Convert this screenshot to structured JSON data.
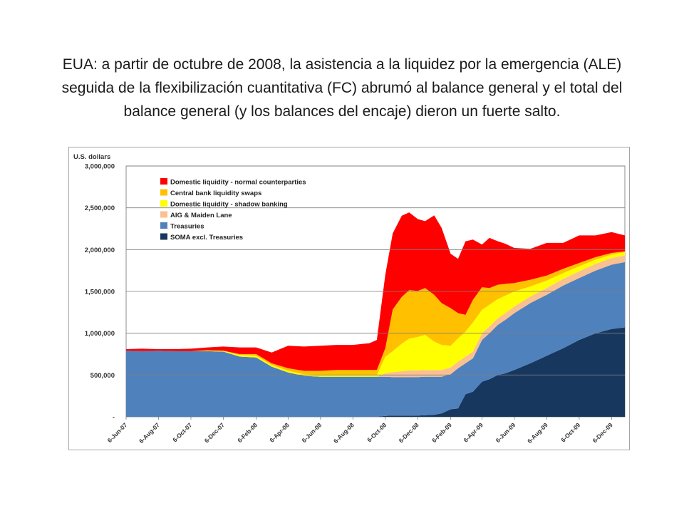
{
  "slide": {
    "title": "EUA: a partir de octubre de 2008, la asistencia a la liquidez por la emergencia (ALE) seguida de la flexibilización cuantitativa (FC) abrumó al balance general y el total del balance general (y los balances del encaje) dieron un fuerte salto."
  },
  "chart_data": {
    "type": "area",
    "stacked": true,
    "ylabel": "U.S. dollars",
    "ylim": [
      0,
      3000000
    ],
    "yticks": [
      0,
      500000,
      1000000,
      1500000,
      2000000,
      2500000,
      3000000
    ],
    "ytick_labels": [
      "-",
      "500,000",
      "1,000,000",
      "1,500,000",
      "2,000,000",
      "2,500,000",
      "3,000,000"
    ],
    "x": [
      "2007-06-06",
      "2007-07-06",
      "2007-08-06",
      "2007-09-06",
      "2007-10-06",
      "2007-11-06",
      "2007-12-06",
      "2008-01-06",
      "2008-02-06",
      "2008-03-06",
      "2008-04-06",
      "2008-05-06",
      "2008-06-06",
      "2008-07-06",
      "2008-08-06",
      "2008-09-06",
      "2008-09-20",
      "2008-10-06",
      "2008-10-20",
      "2008-11-06",
      "2008-11-20",
      "2008-12-06",
      "2008-12-20",
      "2009-01-06",
      "2009-01-20",
      "2009-02-06",
      "2009-02-20",
      "2009-03-06",
      "2009-03-20",
      "2009-04-06",
      "2009-04-20",
      "2009-05-06",
      "2009-05-20",
      "2009-06-06",
      "2009-07-06",
      "2009-08-06",
      "2009-09-06",
      "2009-10-06",
      "2009-11-06",
      "2009-12-06",
      "2009-12-31"
    ],
    "xtick_labels": [
      "6-Jun-07",
      "6-Aug-07",
      "6-Oct-07",
      "6-Dec-07",
      "6-Feb-08",
      "6-Apr-08",
      "6-Jun-08",
      "6-Aug-08",
      "6-Oct-08",
      "6-Dec-08",
      "6-Feb-09",
      "6-Apr-09",
      "6-Jun-09",
      "6-Aug-09",
      "6-Oct-09",
      "6-Dec-09"
    ],
    "xtick_dates": [
      "2007-06-06",
      "2007-08-06",
      "2007-10-06",
      "2007-12-06",
      "2008-02-06",
      "2008-04-06",
      "2008-06-06",
      "2008-08-06",
      "2008-10-06",
      "2008-12-06",
      "2009-02-06",
      "2009-04-06",
      "2009-06-06",
      "2009-08-06",
      "2009-10-06",
      "2009-12-06"
    ],
    "legend_position": "top-left",
    "series": [
      {
        "name": "SOMA excl. Treasuries",
        "color": "#17375e",
        "values": [
          0,
          0,
          0,
          0,
          0,
          0,
          0,
          0,
          0,
          0,
          0,
          0,
          0,
          0,
          0,
          0,
          0,
          10000,
          15000,
          15000,
          15000,
          15000,
          20000,
          25000,
          40000,
          90000,
          100000,
          270000,
          300000,
          420000,
          450000,
          500000,
          520000,
          560000,
          640000,
          730000,
          820000,
          920000,
          1000000,
          1050000,
          1070000
        ]
      },
      {
        "name": "Treasuries",
        "color": "#4f81bd",
        "values": [
          790000,
          785000,
          790000,
          785000,
          785000,
          785000,
          780000,
          720000,
          710000,
          600000,
          530000,
          490000,
          480000,
          480000,
          480000,
          480000,
          480000,
          470000,
          460000,
          460000,
          460000,
          460000,
          460000,
          455000,
          440000,
          420000,
          480000,
          370000,
          400000,
          500000,
          550000,
          600000,
          640000,
          680000,
          720000,
          730000,
          750000,
          740000,
          750000,
          770000,
          780000
        ]
      },
      {
        "name": "AIG & Maiden Lane",
        "color": "#fac090",
        "values": [
          0,
          0,
          0,
          0,
          0,
          0,
          0,
          0,
          0,
          0,
          0,
          0,
          0,
          0,
          0,
          0,
          0,
          40000,
          60000,
          70000,
          80000,
          80000,
          80000,
          80000,
          80000,
          80000,
          80000,
          80000,
          80000,
          80000,
          80000,
          80000,
          80000,
          80000,
          80000,
          80000,
          80000,
          80000,
          80000,
          80000,
          80000
        ]
      },
      {
        "name": "Domestic liquidity -  shadow banking",
        "color": "#ffff00",
        "values": [
          0,
          0,
          0,
          0,
          0,
          10000,
          10000,
          20000,
          20000,
          20000,
          20000,
          20000,
          20000,
          20000,
          20000,
          20000,
          20000,
          200000,
          250000,
          330000,
          380000,
          400000,
          420000,
          340000,
          300000,
          260000,
          280000,
          300000,
          350000,
          280000,
          260000,
          230000,
          210000,
          180000,
          120000,
          90000,
          70000,
          60000,
          50000,
          40000,
          40000
        ]
      },
      {
        "name": "Central bank liquidity swaps",
        "color": "#ffc000",
        "values": [
          0,
          0,
          0,
          0,
          0,
          0,
          0,
          10000,
          20000,
          20000,
          30000,
          40000,
          50000,
          60000,
          60000,
          60000,
          60000,
          100000,
          500000,
          560000,
          580000,
          550000,
          560000,
          560000,
          500000,
          450000,
          300000,
          200000,
          270000,
          270000,
          200000,
          170000,
          140000,
          100000,
          80000,
          60000,
          50000,
          40000,
          30000,
          20000,
          10000
        ]
      },
      {
        "name": "Domestic liquidity -  normal counterparties",
        "color": "#ff0000",
        "values": [
          20000,
          30000,
          20000,
          25000,
          30000,
          35000,
          50000,
          80000,
          80000,
          130000,
          270000,
          290000,
          300000,
          300000,
          300000,
          320000,
          360000,
          880000,
          910000,
          970000,
          930000,
          860000,
          800000,
          950000,
          900000,
          650000,
          650000,
          880000,
          720000,
          510000,
          600000,
          520000,
          480000,
          420000,
          370000,
          390000,
          310000,
          330000,
          260000,
          250000,
          190000
        ]
      }
    ]
  }
}
